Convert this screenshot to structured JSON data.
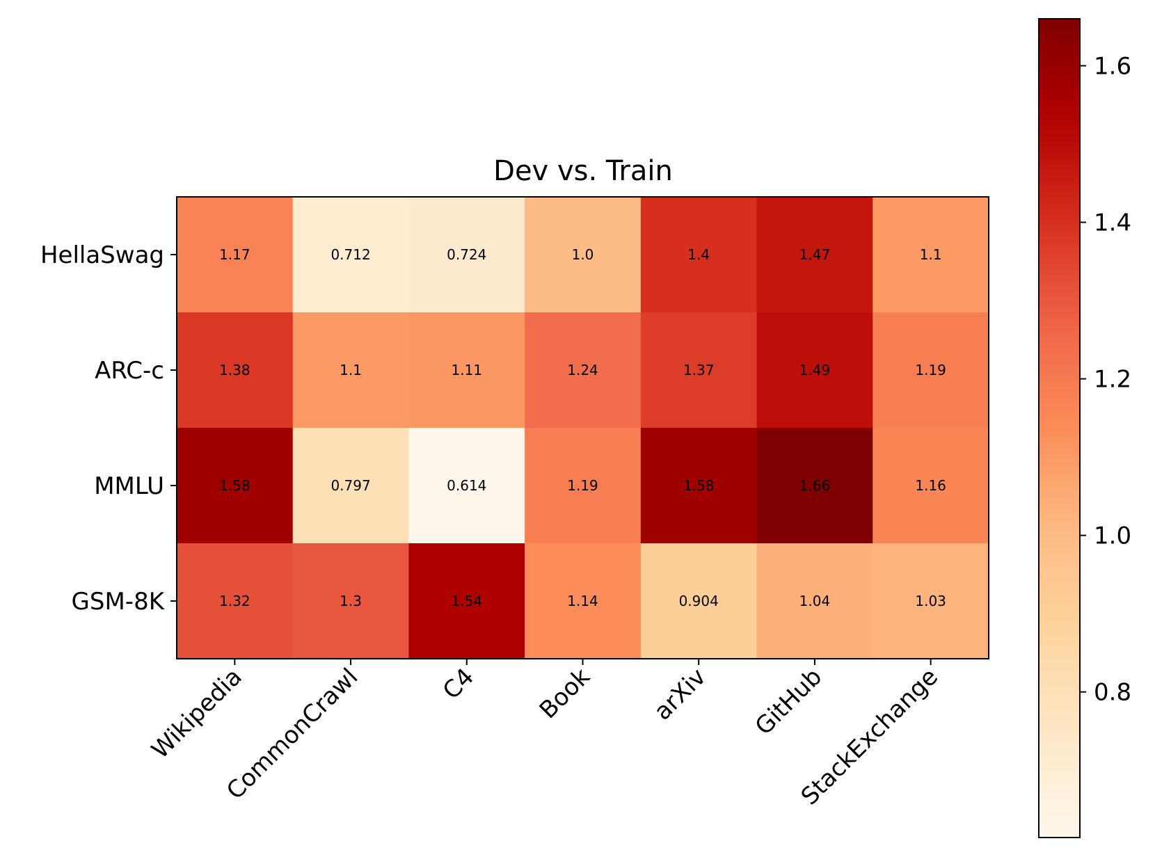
{
  "chart_data": {
    "type": "heatmap",
    "title": "Dev vs. Train",
    "rows": [
      "HellaSwag",
      "ARC-c",
      "MMLU",
      "GSM-8K"
    ],
    "columns": [
      "Wikipedia",
      "CommonCrawl",
      "C4",
      "Book",
      "arXiv",
      "GitHub",
      "StackExchange"
    ],
    "values": [
      [
        1.17,
        0.712,
        0.724,
        1.0,
        1.4,
        1.47,
        1.1
      ],
      [
        1.38,
        1.1,
        1.11,
        1.24,
        1.37,
        1.49,
        1.19
      ],
      [
        1.58,
        0.797,
        0.614,
        1.19,
        1.58,
        1.66,
        1.16
      ],
      [
        1.32,
        1.3,
        1.54,
        1.14,
        0.904,
        1.04,
        1.03
      ]
    ],
    "cell_labels": [
      [
        "1.17",
        "0.712",
        "0.724",
        "1.0",
        "1.4",
        "1.47",
        "1.1"
      ],
      [
        "1.38",
        "1.1",
        "1.11",
        "1.24",
        "1.37",
        "1.49",
        "1.19"
      ],
      [
        "1.58",
        "0.797",
        "0.614",
        "1.19",
        "1.58",
        "1.66",
        "1.16"
      ],
      [
        "1.32",
        "1.3",
        "1.54",
        "1.14",
        "0.904",
        "1.04",
        "1.03"
      ]
    ],
    "colormap": "OrRd",
    "color_range": [
      0.614,
      1.66
    ],
    "colorbar_ticks": [
      "0.8",
      "1.0",
      "1.2",
      "1.4",
      "1.6"
    ],
    "colorbar_tick_values": [
      0.8,
      1.0,
      1.2,
      1.4,
      1.6
    ]
  }
}
